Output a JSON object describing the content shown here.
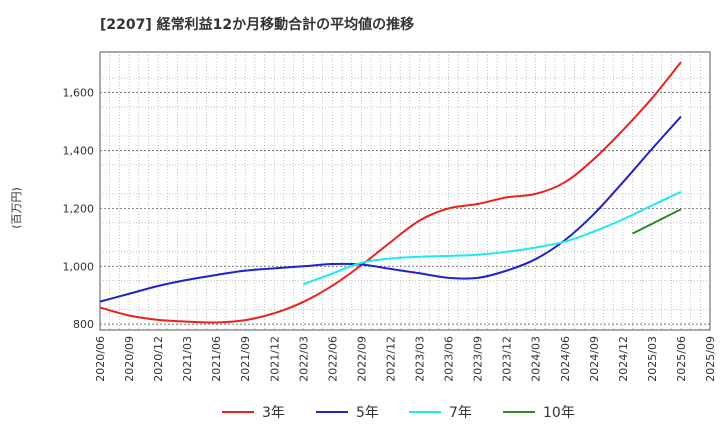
{
  "chart_data": {
    "type": "line",
    "title": "[2207]  経常利益12か月移動合計の平均値の推移",
    "ylabel": "(百万円)",
    "xlabel": "",
    "ylim": [
      780,
      1740
    ],
    "yticks": [
      800,
      1000,
      1200,
      1400,
      1600
    ],
    "ytick_labels": [
      "800",
      "1,000",
      "1,200",
      "1,400",
      "1,600"
    ],
    "x_start": "2020/06",
    "x_end": "2025/09",
    "xtick_labels": [
      "2020/06",
      "2020/09",
      "2020/12",
      "2021/03",
      "2021/06",
      "2021/09",
      "2021/12",
      "2022/03",
      "2022/06",
      "2022/09",
      "2022/12",
      "2023/03",
      "2023/06",
      "2023/09",
      "2023/12",
      "2024/03",
      "2024/06",
      "2024/09",
      "2024/12",
      "2025/03",
      "2025/06",
      "2025/09"
    ],
    "grid": true,
    "legend_position": "bottom",
    "series": [
      {
        "name": "3年",
        "color": "#e8231c",
        "points": [
          [
            "2020/06",
            858
          ],
          [
            "2020/09",
            830
          ],
          [
            "2020/12",
            815
          ],
          [
            "2021/03",
            809
          ],
          [
            "2021/06",
            806
          ],
          [
            "2021/09",
            814
          ],
          [
            "2021/12",
            838
          ],
          [
            "2022/03",
            877
          ],
          [
            "2022/06",
            933
          ],
          [
            "2022/09",
            1004
          ],
          [
            "2022/12",
            1083
          ],
          [
            "2023/03",
            1158
          ],
          [
            "2023/06",
            1200
          ],
          [
            "2023/09",
            1215
          ],
          [
            "2023/12",
            1238
          ],
          [
            "2024/03",
            1250
          ],
          [
            "2024/06",
            1290
          ],
          [
            "2024/09",
            1370
          ],
          [
            "2024/12",
            1470
          ],
          [
            "2025/03",
            1580
          ],
          [
            "2025/06",
            1705
          ]
        ]
      },
      {
        "name": "5年",
        "color": "#1f23c8",
        "points": [
          [
            "2020/06",
            878
          ],
          [
            "2020/09",
            905
          ],
          [
            "2020/12",
            932
          ],
          [
            "2021/03",
            953
          ],
          [
            "2021/06",
            970
          ],
          [
            "2021/09",
            985
          ],
          [
            "2021/12",
            993
          ],
          [
            "2022/03",
            1000
          ],
          [
            "2022/06",
            1008
          ],
          [
            "2022/09",
            1006
          ],
          [
            "2022/12",
            991
          ],
          [
            "2023/03",
            976
          ],
          [
            "2023/06",
            960
          ],
          [
            "2023/09",
            960
          ],
          [
            "2023/12",
            985
          ],
          [
            "2024/03",
            1025
          ],
          [
            "2024/06",
            1090
          ],
          [
            "2024/09",
            1180
          ],
          [
            "2024/12",
            1290
          ],
          [
            "2025/03",
            1405
          ],
          [
            "2025/06",
            1517
          ]
        ]
      },
      {
        "name": "7年",
        "color": "#1ee8f0",
        "points": [
          [
            "2022/03",
            938
          ],
          [
            "2022/06",
            975
          ],
          [
            "2022/09",
            1012
          ],
          [
            "2022/12",
            1027
          ],
          [
            "2023/03",
            1033
          ],
          [
            "2023/06",
            1036
          ],
          [
            "2023/09",
            1040
          ],
          [
            "2023/12",
            1050
          ],
          [
            "2024/03",
            1065
          ],
          [
            "2024/06",
            1085
          ],
          [
            "2024/09",
            1120
          ],
          [
            "2024/12",
            1162
          ],
          [
            "2025/03",
            1210
          ],
          [
            "2025/06",
            1257
          ]
        ]
      },
      {
        "name": "10年",
        "color": "#2b8a2b",
        "points": [
          [
            "2025/01",
            1113
          ],
          [
            "2025/06",
            1197
          ]
        ]
      }
    ]
  }
}
